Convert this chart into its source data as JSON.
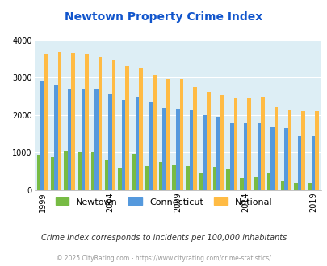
{
  "title": "Newtown Property Crime Index",
  "years": [
    1999,
    2000,
    2001,
    2002,
    2003,
    2004,
    2005,
    2006,
    2007,
    2008,
    2009,
    2010,
    2011,
    2012,
    2013,
    2014,
    2015,
    2016,
    2017,
    2018,
    2019
  ],
  "newtown": [
    950,
    880,
    1060,
    1010,
    1000,
    810,
    600,
    960,
    640,
    760,
    670,
    650,
    450,
    620,
    560,
    320,
    370,
    450,
    250,
    200,
    200
  ],
  "connecticut": [
    2900,
    2780,
    2680,
    2680,
    2680,
    2580,
    2410,
    2480,
    2350,
    2190,
    2160,
    2130,
    2000,
    1950,
    1800,
    1800,
    1780,
    1680,
    1660,
    1430,
    1430
  ],
  "national": [
    3620,
    3660,
    3640,
    3620,
    3540,
    3460,
    3310,
    3250,
    3060,
    2970,
    2960,
    2740,
    2620,
    2520,
    2470,
    2460,
    2490,
    2200,
    2130,
    2100,
    2100
  ],
  "newtown_color": "#77bb44",
  "connecticut_color": "#5599dd",
  "national_color": "#ffbb44",
  "bg_color": "#ddeef5",
  "title_color": "#1155cc",
  "ylim": [
    0,
    4000
  ],
  "yticks": [
    0,
    1000,
    2000,
    3000,
    4000
  ],
  "caption": "Crime Index corresponds to incidents per 100,000 inhabitants",
  "footer": "© 2025 CityRating.com - https://www.cityrating.com/crime-statistics/",
  "caption_color": "#333333",
  "footer_color": "#999999",
  "bar_width": 0.27,
  "grid_color": "#ffffff"
}
